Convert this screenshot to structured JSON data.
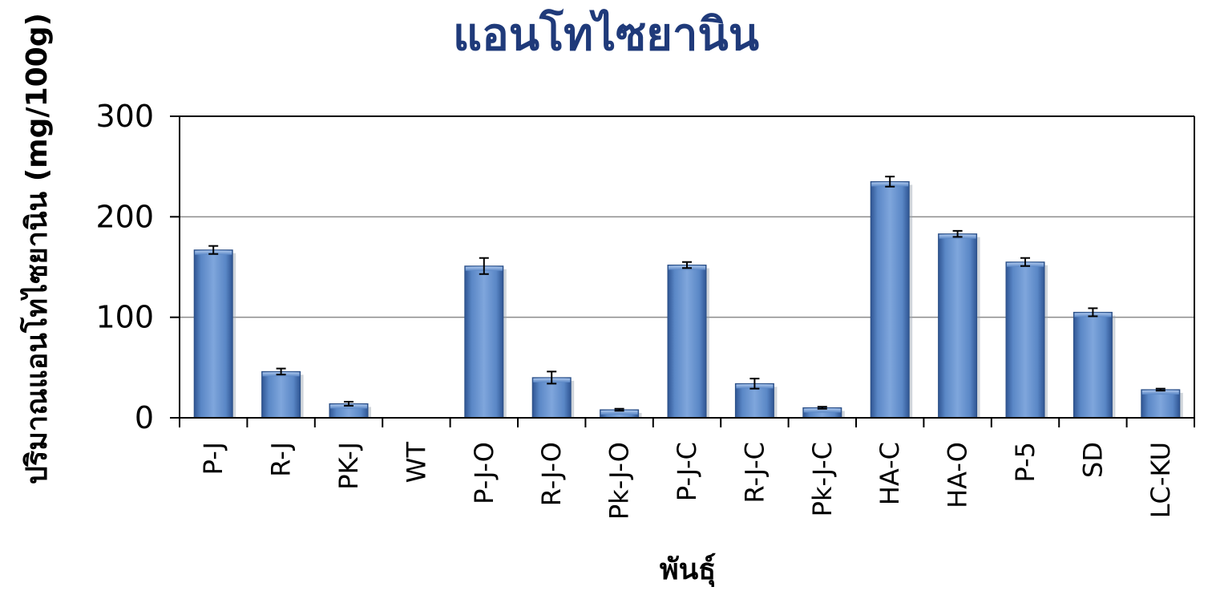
{
  "chart_data": {
    "type": "bar",
    "title": "แอนโทไซยานิน",
    "xlabel": "พันธุ์",
    "ylabel": "ปริมาณแอนโทไซยานิน (mg/100g)",
    "ylim": [
      0,
      300
    ],
    "yticks": [
      "0",
      "100",
      "200",
      "300"
    ],
    "grid": true,
    "categories": [
      "P-J",
      "R-J",
      "PK-J",
      "WT",
      "P-J-O",
      "R-J-O",
      "Pk-J-O",
      "P-J-C",
      "R-J-C",
      "Pk-J-C",
      "HA-C",
      "HA-O",
      "P-5",
      "SD",
      "LC-KU"
    ],
    "series": [
      {
        "values": [
          167,
          46,
          14,
          0,
          151,
          40,
          8,
          152,
          34,
          10,
          235,
          183,
          155,
          105,
          28
        ],
        "errors": [
          4,
          3,
          2,
          0,
          8,
          6,
          1,
          3,
          5,
          1,
          5,
          3,
          4,
          4,
          1
        ],
        "color": "#4f81bd"
      }
    ]
  }
}
